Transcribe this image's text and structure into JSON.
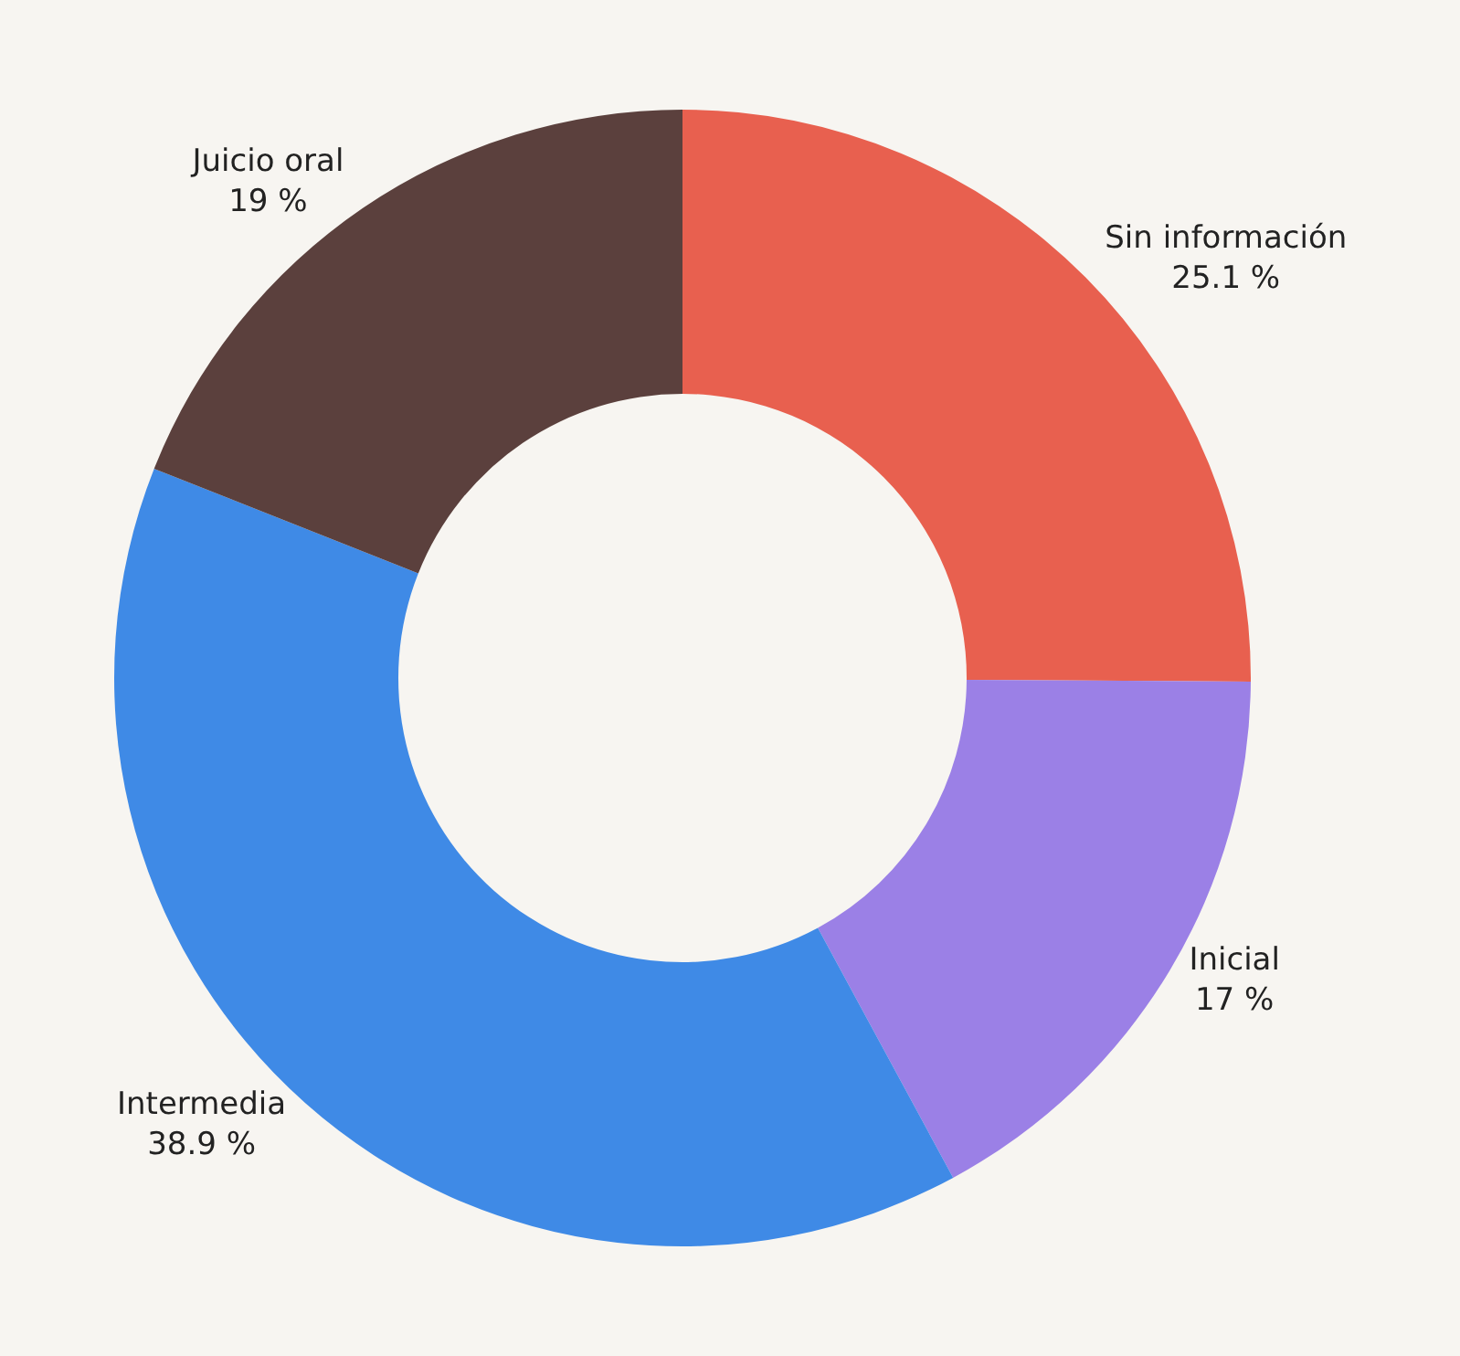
{
  "chart_data": {
    "type": "donut",
    "categories": [
      "Sin información",
      "Inicial",
      "Intermedia",
      "Juicio oral"
    ],
    "values": [
      25.1,
      17,
      38.9,
      19
    ],
    "value_labels": [
      "25.1 %",
      "17 %",
      "38.9 %",
      "19 %"
    ],
    "colors": [
      "#e8604f",
      "#9b80e6",
      "#3f8ae6",
      "#5b403d"
    ],
    "legend": false
  }
}
